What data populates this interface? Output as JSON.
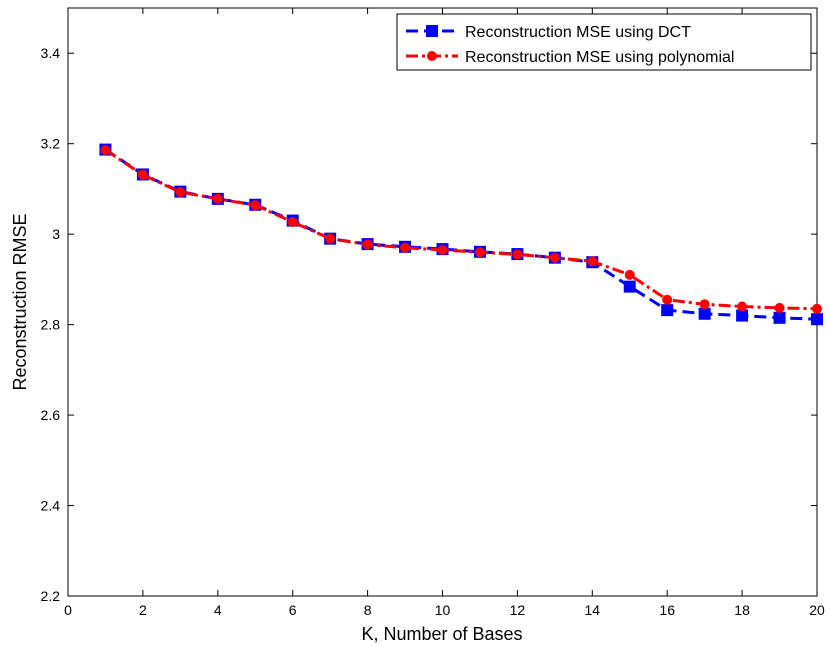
{
  "chart_data": {
    "type": "line",
    "xlabel": "K, Number of Bases",
    "ylabel": "Reconstruction RMSE",
    "xlim": [
      0,
      20
    ],
    "ylim": [
      2.2,
      3.5
    ],
    "xticks": [
      0,
      2,
      4,
      6,
      8,
      10,
      12,
      14,
      16,
      18,
      20
    ],
    "yticks": [
      2.2,
      2.4,
      2.6,
      2.8,
      3,
      3.2,
      3.4
    ],
    "ytick_labels": [
      "2.2",
      "2.4",
      "2.6",
      "2.8",
      "3",
      "3.2",
      "3.4"
    ],
    "grid": false,
    "legend_position": "top-right",
    "x": [
      1,
      2,
      3,
      4,
      5,
      6,
      7,
      8,
      9,
      10,
      11,
      12,
      13,
      14,
      15,
      16,
      17,
      18,
      19,
      20
    ],
    "series": [
      {
        "name": "Reconstruction MSE using DCT",
        "color": "#0000ff",
        "marker": "square",
        "line_style": "dashed",
        "values": [
          3.187,
          3.132,
          3.094,
          3.078,
          3.065,
          3.03,
          2.99,
          2.978,
          2.972,
          2.967,
          2.961,
          2.956,
          2.948,
          2.938,
          2.884,
          2.832,
          2.824,
          2.82,
          2.815,
          2.812
        ]
      },
      {
        "name": "Reconstruction MSE using polynomial",
        "color": "#ff0000",
        "marker": "circle",
        "line_style": "dash-dot",
        "values": [
          3.186,
          3.131,
          3.093,
          3.078,
          3.064,
          3.027,
          2.99,
          2.977,
          2.97,
          2.965,
          2.96,
          2.955,
          2.948,
          2.94,
          2.91,
          2.855,
          2.845,
          2.84,
          2.837,
          2.835
        ]
      }
    ]
  }
}
